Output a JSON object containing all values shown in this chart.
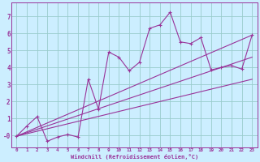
{
  "xlabel": "Windchill (Refroidissement éolien,°C)",
  "background_color": "#cceeff",
  "grid_color": "#99cccc",
  "line_color": "#993399",
  "xlim": [
    -0.5,
    23.5
  ],
  "ylim": [
    -0.7,
    7.8
  ],
  "xticks": [
    0,
    1,
    2,
    3,
    4,
    5,
    6,
    7,
    8,
    9,
    10,
    11,
    12,
    13,
    14,
    15,
    16,
    17,
    18,
    19,
    20,
    21,
    22,
    23
  ],
  "yticks": [
    0,
    1,
    2,
    3,
    4,
    5,
    6,
    7
  ],
  "ytick_labels": [
    "-0",
    "1",
    "2",
    "3",
    "4",
    "5",
    "6",
    "7"
  ],
  "series1_x": [
    0,
    1,
    2,
    3,
    4,
    5,
    6,
    7,
    8,
    9,
    10,
    11,
    12,
    13,
    14,
    15,
    16,
    17,
    18,
    19,
    20,
    21,
    22,
    23
  ],
  "series1_y": [
    -0.05,
    0.55,
    1.1,
    -0.35,
    -0.1,
    0.05,
    -0.1,
    3.3,
    1.55,
    4.9,
    4.6,
    3.8,
    4.3,
    6.3,
    6.5,
    7.25,
    5.5,
    5.4,
    5.75,
    3.85,
    4.0,
    4.1,
    3.9,
    5.9
  ],
  "line2_x0": 0,
  "line2_y0": -0.05,
  "line2_x1": 23,
  "line2_y1": 5.9,
  "line3_x0": 0,
  "line3_y0": -0.05,
  "line3_x1": 23,
  "line3_y1": 3.3,
  "line4_x0": 0,
  "line4_y0": -0.05,
  "line4_x1": 23,
  "line4_y1": 4.6
}
